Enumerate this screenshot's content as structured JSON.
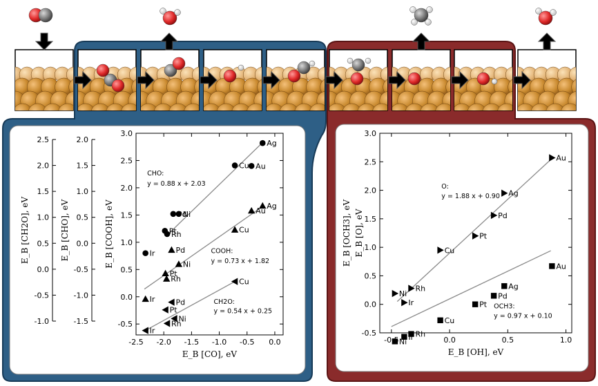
{
  "colors": {
    "blue_panel": "#2e5f86",
    "red_panel": "#8a2b2b",
    "gold": "#c98a2f",
    "carbon": "#6a6a6a",
    "oxygen": "#d82a2a",
    "hydrogen": "#f0f0f0"
  },
  "chart_data": [
    {
      "type": "scatter",
      "title": "",
      "xlabel": "E_B [CO], eV",
      "ylabel": "E_B [COOH], eV",
      "x_ticks": [
        "-2.5",
        "-2.0",
        "-1.5",
        "-1.0",
        "-0.5",
        "0.0"
      ],
      "y_ticks": [
        "-0.5",
        "0.0",
        "0.5",
        "1.0",
        "1.5",
        "2.0",
        "2.5",
        "3.0"
      ],
      "xlim": [
        -2.5,
        0.15
      ],
      "ylim": [
        -0.7,
        3.0
      ],
      "extra_axes": [
        {
          "label": "E_B [CHO], eV",
          "ticks": [
            "-1.5",
            "-1.0",
            "-0.5",
            "0.0",
            "0.5",
            "1.0",
            "1.5",
            "2.0"
          ]
        },
        {
          "label": "E_B [CH2O], eV",
          "ticks": [
            "-1.0",
            "-0.5",
            "0.0",
            "0.5",
            "1.0",
            "1.5",
            "2.0",
            "2.5"
          ]
        }
      ],
      "series": [
        {
          "name": "CHO",
          "marker": "circle",
          "fit": "y = 0.88 x + 2.03",
          "fit_x": [
            -1.95,
            -0.2
          ],
          "fit_y": [
            1.12,
            2.85
          ],
          "points": [
            {
              "label": "Ag",
              "x": -0.22,
              "y": 2.82
            },
            {
              "label": "Cu",
              "x": -0.72,
              "y": 2.41
            },
            {
              "label": "Au",
              "x": -0.42,
              "y": 2.4
            },
            {
              "label": "Pd",
              "x": -1.83,
              "y": 1.52
            },
            {
              "label": "Ni",
              "x": -1.73,
              "y": 1.52
            },
            {
              "label": "Pt",
              "x": -1.98,
              "y": 1.21
            },
            {
              "label": "Rh",
              "x": -1.94,
              "y": 1.15
            },
            {
              "label": "Ir",
              "x": -2.33,
              "y": 0.8
            }
          ]
        },
        {
          "name": "COOH",
          "marker": "triangle-up",
          "fit": "y = 0.73 x + 1.82",
          "fit_x": [
            -2.35,
            -0.2
          ],
          "fit_y": [
            0.14,
            1.67
          ],
          "points": [
            {
              "label": "Ag",
              "x": -0.22,
              "y": 1.67
            },
            {
              "label": "Au",
              "x": -0.42,
              "y": 1.58
            },
            {
              "label": "Cu",
              "x": -0.72,
              "y": 1.23
            },
            {
              "label": "Pd",
              "x": -1.86,
              "y": 0.86
            },
            {
              "label": "Ni",
              "x": -1.73,
              "y": 0.6
            },
            {
              "label": "Pt",
              "x": -1.97,
              "y": 0.43
            },
            {
              "label": "Rh",
              "x": -1.95,
              "y": 0.33
            },
            {
              "label": "Ir",
              "x": -2.33,
              "y": -0.04
            }
          ]
        },
        {
          "name": "CH2O",
          "marker": "triangle-left",
          "fit": "y = 0.54 x + 0.25",
          "fit_x": [
            -2.35,
            -0.72
          ],
          "fit_y": [
            -0.63,
            0.28
          ],
          "points": [
            {
              "label": "Cu",
              "x": -0.72,
              "y": 0.28
            },
            {
              "label": "Pd",
              "x": -1.86,
              "y": -0.1
            },
            {
              "label": "Pt",
              "x": -1.97,
              "y": -0.24
            },
            {
              "label": "Ni",
              "x": -1.81,
              "y": -0.4
            },
            {
              "label": "Rh",
              "x": -1.94,
              "y": -0.49
            },
            {
              "label": "Ir",
              "x": -2.33,
              "y": -0.62
            }
          ]
        }
      ],
      "annotations": [
        {
          "text": "CHO:",
          "x": -2.3,
          "y": 2.23
        },
        {
          "text": "y = 0.88 x + 2.03",
          "x": -2.3,
          "y": 2.04
        },
        {
          "text": "COOH:",
          "x": -1.15,
          "y": 0.8
        },
        {
          "text": "y = 0.73 x + 1.82",
          "x": -1.15,
          "y": 0.62
        },
        {
          "text": "CH2O:",
          "x": -1.1,
          "y": -0.13
        },
        {
          "text": "y = 0.54 x + 0.25",
          "x": -1.1,
          "y": -0.3
        }
      ]
    },
    {
      "type": "scatter",
      "title": "",
      "xlabel": "E_B [OH], eV",
      "ylabel": "E_B [O], eV",
      "x_ticks": [
        "-0.5",
        "0.0",
        "0.5",
        "1.0"
      ],
      "y_ticks": [
        "-0.5",
        "0.0",
        "0.5",
        "1.0",
        "1.5",
        "2.0",
        "2.5",
        "3.0"
      ],
      "xlim": [
        -0.6,
        1.05
      ],
      "ylim": [
        -0.5,
        3.0
      ],
      "extra_axes": [
        {
          "label": "E_B [OCH3], eV",
          "ticks": []
        }
      ],
      "series": [
        {
          "name": "O",
          "marker": "triangle-right",
          "fit": "y = 1.88 x + 0.90",
          "fit_x": [
            -0.45,
            0.87
          ],
          "fit_y": [
            0.05,
            2.54
          ],
          "points": [
            {
              "label": "Au",
              "x": 0.88,
              "y": 2.57
            },
            {
              "label": "Ag",
              "x": 0.47,
              "y": 1.95
            },
            {
              "label": "Pd",
              "x": 0.38,
              "y": 1.56
            },
            {
              "label": "Pt",
              "x": 0.22,
              "y": 1.2
            },
            {
              "label": "Cu",
              "x": -0.08,
              "y": 0.95
            },
            {
              "label": "Rh",
              "x": -0.33,
              "y": 0.28
            },
            {
              "label": "Ni",
              "x": -0.47,
              "y": 0.19
            },
            {
              "label": "Ir",
              "x": -0.39,
              "y": 0.03
            }
          ]
        },
        {
          "name": "OCH3",
          "marker": "square",
          "fit": "y = 0.97 x + 0.10",
          "fit_x": [
            -0.5,
            0.87
          ],
          "fit_y": [
            -0.39,
            0.94
          ],
          "points": [
            {
              "label": "Au",
              "x": 0.88,
              "y": 0.67
            },
            {
              "label": "Ag",
              "x": 0.47,
              "y": 0.32
            },
            {
              "label": "Pd",
              "x": 0.38,
              "y": 0.15
            },
            {
              "label": "Pt",
              "x": 0.22,
              "y": 0.0
            },
            {
              "label": "Cu",
              "x": -0.08,
              "y": -0.28
            },
            {
              "label": "Rh",
              "x": -0.33,
              "y": -0.52
            },
            {
              "label": "Ir",
              "x": -0.39,
              "y": -0.57
            },
            {
              "label": "Ni",
              "x": -0.47,
              "y": -0.65
            }
          ]
        }
      ],
      "annotations": [
        {
          "text": "O:",
          "x": -0.07,
          "y": 2.03
        },
        {
          "text": "y = 1.88 x + 0.90",
          "x": -0.07,
          "y": 1.86
        },
        {
          "text": "OCH3:",
          "x": 0.38,
          "y": -0.07
        },
        {
          "text": "y = 0.97 x + 0.10",
          "x": 0.38,
          "y": -0.24
        }
      ]
    }
  ]
}
